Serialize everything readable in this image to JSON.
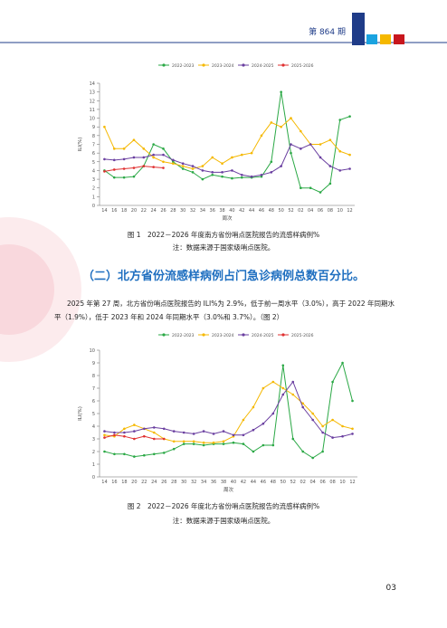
{
  "header": {
    "issue": "第 864 期"
  },
  "figures": [
    {
      "chart": {
        "type": "line",
        "y_label": "ILI(%)",
        "x_label": "周次",
        "categories": [
          "14",
          "16",
          "18",
          "20",
          "22",
          "24",
          "26",
          "28",
          "30",
          "32",
          "34",
          "36",
          "38",
          "40",
          "42",
          "44",
          "46",
          "48",
          "50",
          "52",
          "02",
          "04",
          "06",
          "08",
          "10",
          "12"
        ],
        "ylim": [
          0,
          14
        ],
        "yticks": [
          0,
          1,
          2,
          3,
          4,
          5,
          6,
          7,
          8,
          9,
          10,
          11,
          12,
          13,
          14
        ],
        "series": [
          {
            "name": "2022-2023",
            "color": "#2aa845",
            "values": [
              4.0,
              3.2,
              3.2,
              3.3,
              4.5,
              7.0,
              6.5,
              5.0,
              4.2,
              3.8,
              3.0,
              3.5,
              3.3,
              3.1,
              3.2,
              3.2,
              3.3,
              5.0,
              13.0,
              6.0,
              2.0,
              2.0,
              1.5,
              2.5,
              9.8,
              10.2
            ]
          },
          {
            "name": "2023-2024",
            "color": "#f5b800",
            "values": [
              9.0,
              6.5,
              6.5,
              7.5,
              6.5,
              5.5,
              5.0,
              4.8,
              4.5,
              4.2,
              4.5,
              5.5,
              4.8,
              5.5,
              5.8,
              6.0,
              8.0,
              9.5,
              9.0,
              10.0,
              8.5,
              7.0,
              7.0,
              7.5,
              6.2,
              5.8
            ]
          },
          {
            "name": "2024-2025",
            "color": "#6a3fa0",
            "values": [
              5.3,
              5.2,
              5.3,
              5.5,
              5.5,
              5.8,
              5.8,
              5.2,
              4.8,
              4.5,
              4.0,
              3.8,
              3.8,
              4.0,
              3.5,
              3.3,
              3.5,
              3.8,
              4.5,
              7.0,
              6.5,
              7.0,
              5.5,
              4.5,
              4.0,
              4.2
            ]
          },
          {
            "name": "2025-2026",
            "color": "#e03030",
            "values": [
              3.9,
              4.1,
              4.2,
              4.3,
              4.5,
              4.4,
              4.3,
              null,
              null,
              null,
              null,
              null,
              null,
              null,
              null,
              null,
              null,
              null,
              null,
              null,
              null,
              null,
              null,
              null,
              null,
              null
            ]
          }
        ]
      },
      "caption": "图 1　2022－2026 年度南方省份哨点医院报告的流感样病例%",
      "note": "注：数据来源于国家级哨点医院。"
    },
    {
      "chart": {
        "type": "line",
        "y_label": "ILI(%)",
        "x_label": "周次",
        "categories": [
          "14",
          "16",
          "18",
          "20",
          "22",
          "24",
          "26",
          "28",
          "30",
          "32",
          "34",
          "36",
          "38",
          "40",
          "42",
          "44",
          "46",
          "48",
          "50",
          "52",
          "02",
          "04",
          "06",
          "08",
          "10",
          "12"
        ],
        "ylim": [
          0,
          10
        ],
        "yticks": [
          0,
          1,
          2,
          3,
          4,
          5,
          6,
          7,
          8,
          9,
          10
        ],
        "series": [
          {
            "name": "2022-2023",
            "color": "#2aa845",
            "values": [
              2.0,
              1.8,
              1.8,
              1.6,
              1.7,
              1.8,
              1.9,
              2.2,
              2.6,
              2.6,
              2.5,
              2.6,
              2.6,
              2.7,
              2.6,
              2.0,
              2.5,
              2.5,
              8.8,
              3.0,
              2.0,
              1.5,
              2.0,
              7.5,
              9.0,
              6.0
            ]
          },
          {
            "name": "2023-2024",
            "color": "#f5b800",
            "values": [
              3.3,
              3.2,
              3.8,
              4.1,
              3.8,
              3.5,
              3.0,
              2.8,
              2.8,
              2.8,
              2.7,
              2.7,
              2.8,
              3.2,
              4.5,
              5.5,
              7.0,
              7.5,
              7.0,
              6.5,
              5.8,
              5.0,
              4.0,
              4.5,
              4.0,
              3.8
            ]
          },
          {
            "name": "2024-2025",
            "color": "#6a3fa0",
            "values": [
              3.6,
              3.5,
              3.5,
              3.6,
              3.8,
              3.9,
              3.8,
              3.6,
              3.5,
              3.4,
              3.6,
              3.4,
              3.6,
              3.3,
              3.3,
              3.7,
              4.2,
              5.0,
              6.5,
              7.5,
              5.5,
              4.5,
              3.5,
              3.1,
              3.2,
              3.4
            ]
          },
          {
            "name": "2025-2026",
            "color": "#e03030",
            "values": [
              3.1,
              3.3,
              3.2,
              3.0,
              3.2,
              3.0,
              3.0,
              null,
              null,
              null,
              null,
              null,
              null,
              null,
              null,
              null,
              null,
              null,
              null,
              null,
              null,
              null,
              null,
              null,
              null,
              null
            ]
          }
        ]
      },
      "caption": "图 2　2022－2026 年度北方省份哨点医院报告的流感样病例%",
      "note": "注：数据来源于国家级哨点医院。"
    }
  ],
  "section": {
    "heading": "（二）北方省份流感样病例占门急诊病例总数百分比。",
    "paragraph": "2025 年第 27 周，北方省份哨点医院报告的 ILI%为 2.9%，低于前一周水平（3.0%），高于 2022 年同期水平（1.9%），低于 2023 年和 2024 年同期水平（3.0%和 3.7%）。（图 2）"
  },
  "page_number": "03"
}
